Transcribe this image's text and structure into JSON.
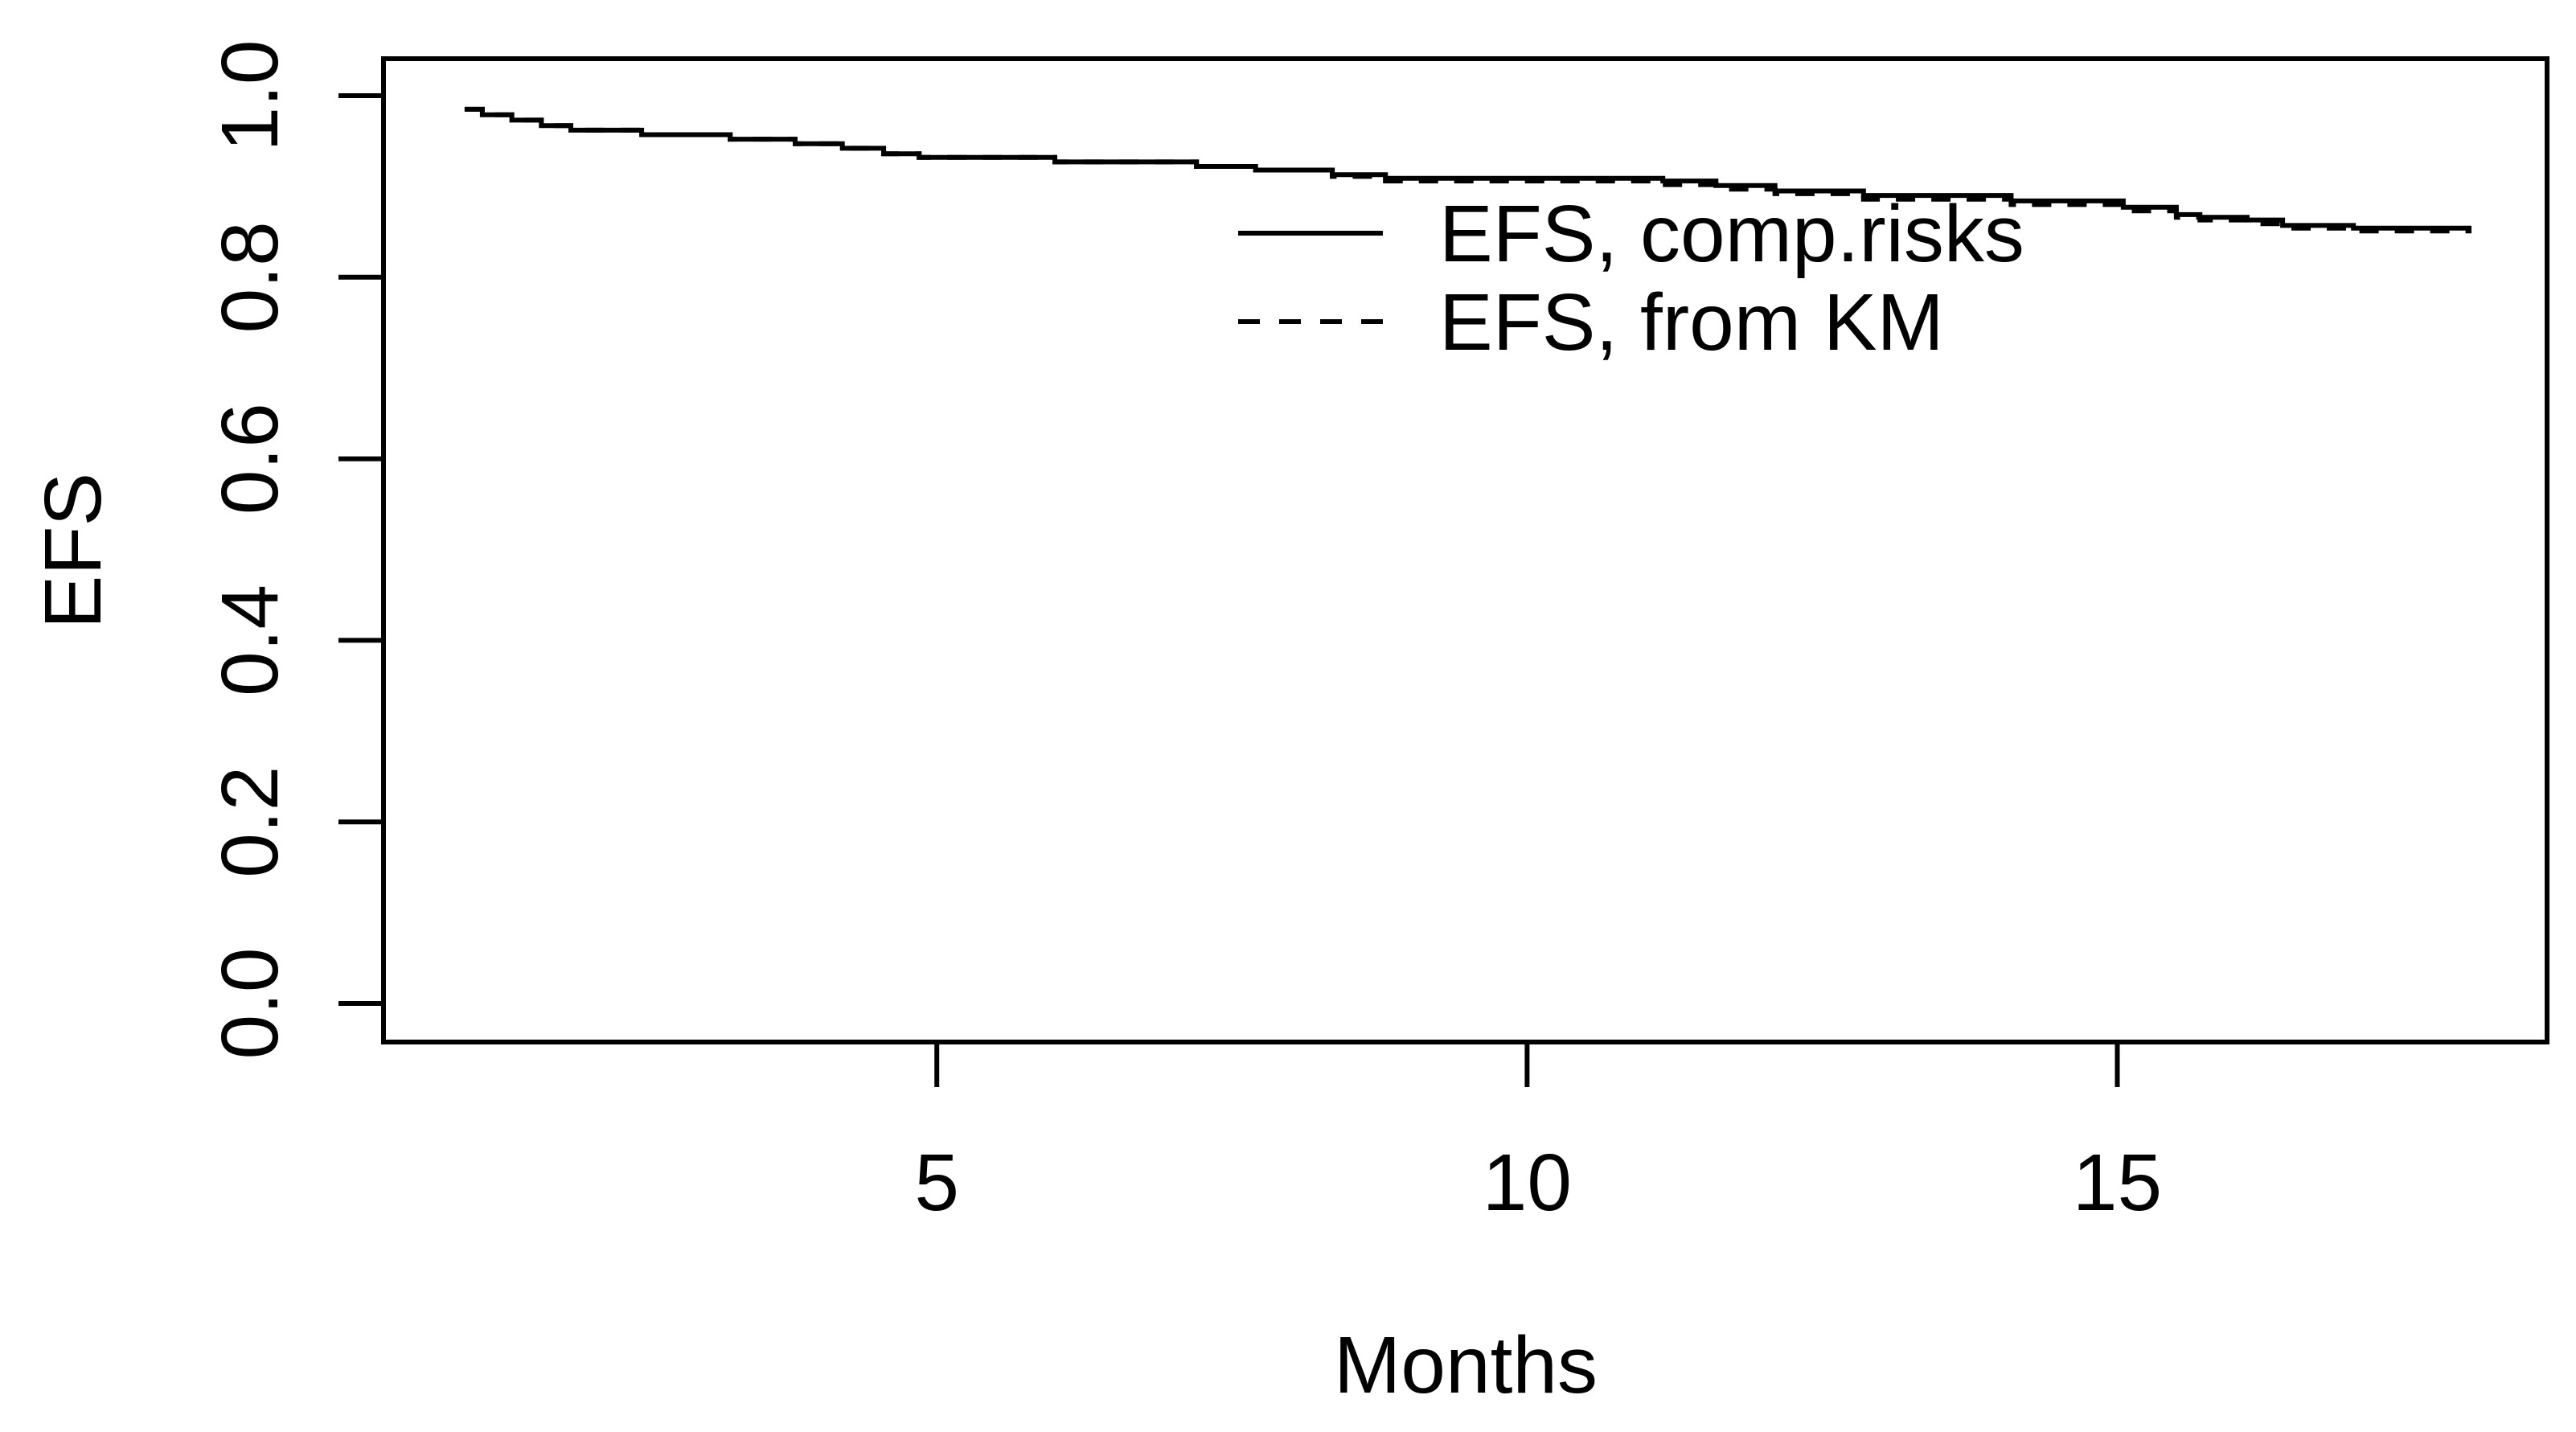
{
  "figure": {
    "background_color": "#ffffff",
    "foreground_color": "#000000",
    "description": "Base-R style step plot comparing event-free survival estimated with competing risks vs Kaplan-Meier"
  },
  "chart_data": {
    "type": "line",
    "subtype": "step-survival",
    "title": "",
    "xlabel": "Months",
    "ylabel": "EFS",
    "grid": false,
    "legend_position": "top-right-inside",
    "xlim": [
      0.313,
      18.64
    ],
    "ylim": [
      -0.0425,
      1.0407
    ],
    "x_end": 18.0,
    "x_ticks": {
      "values": [
        5,
        10,
        15
      ],
      "labels": [
        "5",
        "10",
        "15"
      ]
    },
    "y_ticks": {
      "values": [
        0.0,
        0.2,
        0.4,
        0.6,
        0.8,
        1.0
      ],
      "labels": [
        "0.0",
        "0.2",
        "0.4",
        "0.6",
        "0.8",
        "1.0"
      ]
    },
    "series": [
      {
        "name": "EFS, comp.risks",
        "line_style": "solid",
        "color": "#000000",
        "points": [
          [
            1.0,
            0.985
          ],
          [
            1.15,
            0.979
          ],
          [
            1.4,
            0.973
          ],
          [
            1.65,
            0.967
          ],
          [
            1.9,
            0.962
          ],
          [
            2.5,
            0.957
          ],
          [
            3.25,
            0.952
          ],
          [
            3.8,
            0.947
          ],
          [
            4.2,
            0.942
          ],
          [
            4.55,
            0.936
          ],
          [
            4.85,
            0.932
          ],
          [
            6.0,
            0.927
          ],
          [
            7.2,
            0.922
          ],
          [
            7.7,
            0.918
          ],
          [
            8.35,
            0.913
          ],
          [
            8.8,
            0.909
          ],
          [
            11.15,
            0.906
          ],
          [
            11.6,
            0.901
          ],
          [
            12.1,
            0.895
          ],
          [
            12.85,
            0.89
          ],
          [
            14.1,
            0.884
          ],
          [
            15.05,
            0.877
          ],
          [
            15.5,
            0.869
          ],
          [
            15.7,
            0.866
          ],
          [
            16.1,
            0.863
          ],
          [
            16.4,
            0.857
          ],
          [
            17.0,
            0.854
          ]
        ]
      },
      {
        "name": "EFS, from KM",
        "line_style": "dashed",
        "color": "#000000",
        "points": [
          [
            1.0,
            0.985
          ],
          [
            1.15,
            0.979
          ],
          [
            1.4,
            0.973
          ],
          [
            1.65,
            0.967
          ],
          [
            1.9,
            0.962
          ],
          [
            2.5,
            0.957
          ],
          [
            3.25,
            0.952
          ],
          [
            3.8,
            0.947
          ],
          [
            4.2,
            0.942
          ],
          [
            4.55,
            0.936
          ],
          [
            4.85,
            0.932
          ],
          [
            6.0,
            0.927
          ],
          [
            7.2,
            0.922
          ],
          [
            7.7,
            0.918
          ],
          [
            8.35,
            0.911
          ],
          [
            8.8,
            0.906
          ],
          [
            11.15,
            0.902
          ],
          [
            11.6,
            0.897
          ],
          [
            12.1,
            0.892
          ],
          [
            12.85,
            0.886
          ],
          [
            14.1,
            0.88
          ],
          [
            15.05,
            0.873
          ],
          [
            15.5,
            0.866
          ],
          [
            15.7,
            0.863
          ],
          [
            16.1,
            0.859
          ],
          [
            16.4,
            0.854
          ],
          [
            17.0,
            0.851
          ]
        ]
      }
    ]
  }
}
